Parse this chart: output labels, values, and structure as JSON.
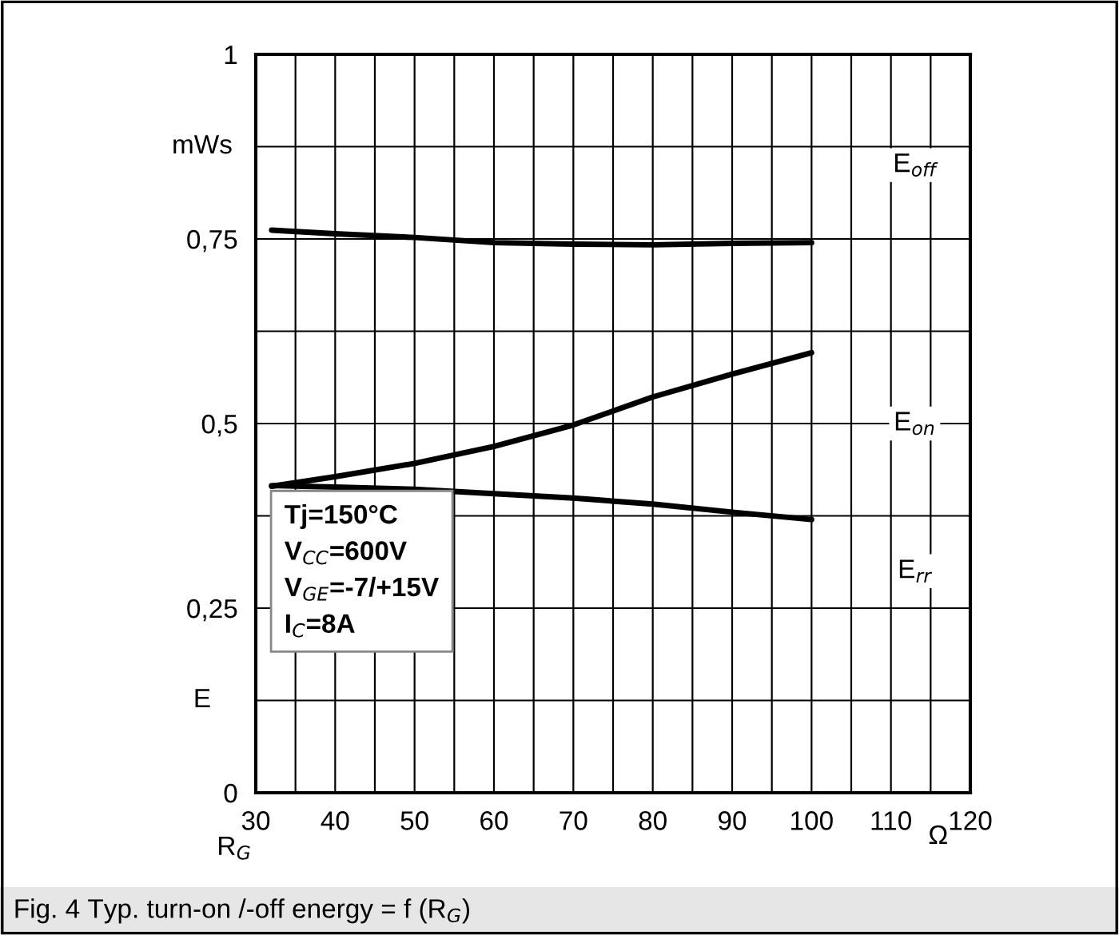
{
  "chart_data": {
    "type": "line",
    "title": "Fig. 4 Typ. turn-on /-off energy = f (R$_{G}$)",
    "xlabel": "R$_{G}$",
    "ylabel": "E",
    "annotations": [
      "mWs",
      "Ω",
      "Tj=150°C\nV$_{CC}$=600V\nV$_{GE}$=-7/+15V\nI$_{C}$=8A"
    ],
    "series": [
      {
        "name": "E$_{off}$",
        "color": "#000000",
        "x": [
          32,
          40,
          50,
          60,
          70,
          80,
          90,
          100
        ],
        "values": [
          0.762,
          0.757,
          0.752,
          0.745,
          0.743,
          0.742,
          0.744,
          0.745
        ]
      },
      {
        "name": "E$_{on}$",
        "color": "#000000",
        "x": [
          32,
          40,
          50,
          60,
          70,
          80,
          90,
          100
        ],
        "values": [
          0.415,
          0.428,
          0.446,
          0.469,
          0.498,
          0.536,
          0.567,
          0.596
        ]
      },
      {
        "name": "E$_{rr}$",
        "color": "#000000",
        "x": [
          32,
          40,
          50,
          60,
          70,
          80,
          90,
          100
        ],
        "values": [
          0.416,
          0.414,
          0.411,
          0.405,
          0.399,
          0.391,
          0.38,
          0.37
        ]
      }
    ],
    "xlim": [
      30,
      120
    ],
    "xticks": [
      30,
      {
        "value": 35,
        "label": null
      },
      40,
      {
        "value": 45,
        "label": null
      },
      50,
      {
        "value": 55,
        "label": null
      },
      60,
      {
        "value": 65,
        "label": null
      },
      70,
      {
        "value": 75,
        "label": null
      },
      80,
      {
        "value": 85,
        "label": null
      },
      90,
      {
        "value": 95,
        "label": null
      },
      100,
      {
        "value": 105,
        "label": null
      },
      110,
      {
        "value": 115,
        "label": null
      },
      120
    ],
    "ylim": [
      0,
      1
    ],
    "yticks": [
      0,
      {
        "value": 0.125,
        "label": null
      },
      {
        "value": 0.25,
        "label": "0,25"
      },
      {
        "value": 0.375,
        "label": null
      },
      {
        "value": 0.5,
        "label": "0,5"
      },
      {
        "value": 0.625,
        "label": null
      },
      {
        "value": 0.75,
        "label": "0,75"
      },
      {
        "value": 0.875,
        "label": null
      },
      1
    ],
    "grid": true,
    "legend": false,
    "marker": "none",
    "line_style": "solid"
  }
}
